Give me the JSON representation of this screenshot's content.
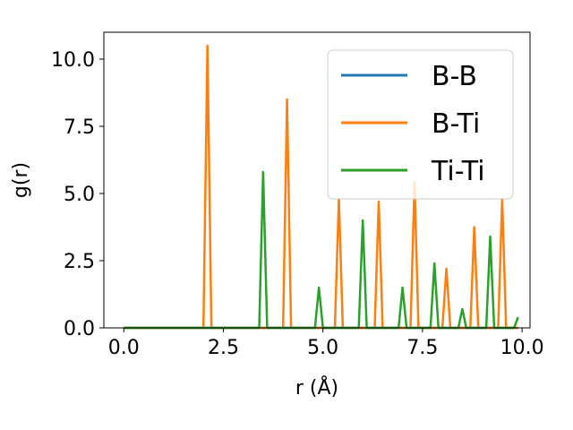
{
  "chart_data": {
    "type": "line",
    "title": "",
    "xlabel": "r (Å)",
    "ylabel": "g(r)",
    "xlim": [
      -0.5,
      10.2
    ],
    "ylim": [
      0,
      11.0
    ],
    "xticks": [
      0.0,
      2.5,
      5.0,
      7.5,
      10.0
    ],
    "xtick_labels": [
      "0.0",
      "2.5",
      "5.0",
      "7.5",
      "10.0"
    ],
    "yticks": [
      0.0,
      2.5,
      5.0,
      7.5,
      10.0
    ],
    "ytick_labels": [
      "0.0",
      "2.5",
      "5.0",
      "7.5",
      "10.0"
    ],
    "grid": false,
    "legend_position": "top-right",
    "series": [
      {
        "name": "B-B",
        "color": "#1f77b4",
        "x": [
          0.0,
          9.9
        ],
        "y": [
          0.0,
          0.0
        ]
      },
      {
        "name": "B-Ti",
        "color": "#ff7f0e",
        "x": [
          0.0,
          2.0,
          2.1,
          2.2,
          4.0,
          4.1,
          4.2,
          5.3,
          5.4,
          5.5,
          6.3,
          6.4,
          6.5,
          7.2,
          7.3,
          7.4,
          8.0,
          8.1,
          8.2,
          8.7,
          8.8,
          8.9,
          9.4,
          9.5,
          9.6,
          9.9
        ],
        "y": [
          0.0,
          0.0,
          10.5,
          0.0,
          0.0,
          8.5,
          0.0,
          0.0,
          4.8,
          0.0,
          0.0,
          4.7,
          0.0,
          0.0,
          5.4,
          0.0,
          0.0,
          2.2,
          0.0,
          0.0,
          3.75,
          0.0,
          0.0,
          4.8,
          0.0,
          0.0
        ]
      },
      {
        "name": "Ti-Ti",
        "color": "#2ca02c",
        "x": [
          0.0,
          3.4,
          3.5,
          3.6,
          4.8,
          4.9,
          5.0,
          5.9,
          6.0,
          6.1,
          6.9,
          7.0,
          7.1,
          7.7,
          7.8,
          7.9,
          8.4,
          8.5,
          8.6,
          9.1,
          9.2,
          9.3,
          9.8,
          9.9
        ],
        "y": [
          0.0,
          0.0,
          5.8,
          0.0,
          0.0,
          1.5,
          0.0,
          0.0,
          4.0,
          0.0,
          0.0,
          1.5,
          0.0,
          0.0,
          2.4,
          0.0,
          0.0,
          0.7,
          0.0,
          0.0,
          3.4,
          0.0,
          0.0,
          0.4
        ]
      }
    ]
  }
}
